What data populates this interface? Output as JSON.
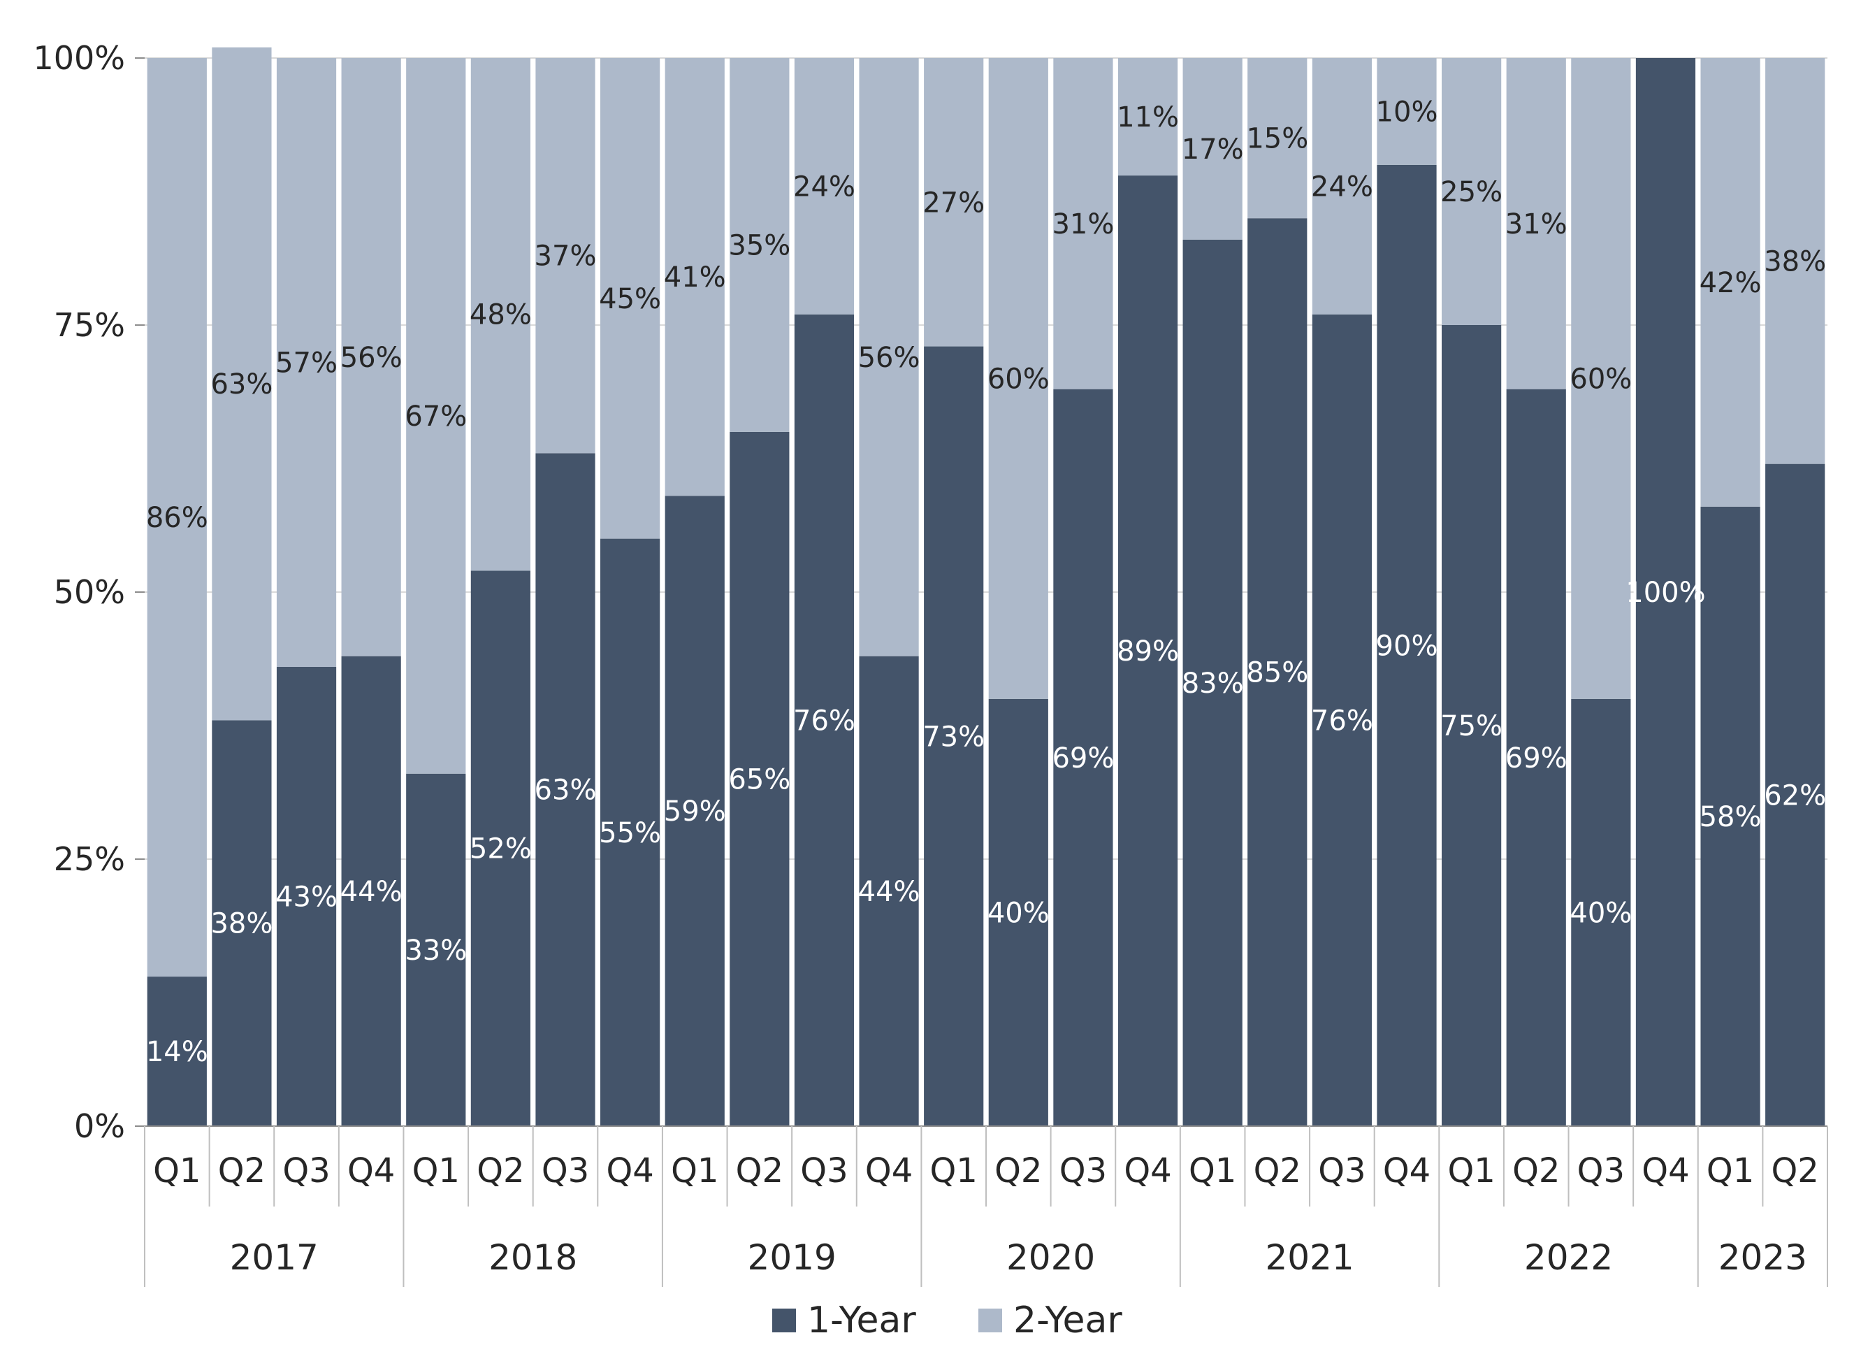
{
  "chart_data": {
    "type": "bar",
    "stacked": true,
    "percent_stacked": true,
    "title": "",
    "xlabel": "",
    "ylabel": "",
    "ylim": [
      0,
      100
    ],
    "yticks": [
      "0%",
      "25%",
      "50%",
      "75%",
      "100%"
    ],
    "grid": true,
    "legend_position": "bottom",
    "categories": [
      "Q1",
      "Q2",
      "Q3",
      "Q4",
      "Q1",
      "Q2",
      "Q3",
      "Q4",
      "Q1",
      "Q2",
      "Q3",
      "Q4",
      "Q1",
      "Q2",
      "Q3",
      "Q4",
      "Q1",
      "Q2",
      "Q3",
      "Q4",
      "Q1",
      "Q2",
      "Q3",
      "Q4",
      "Q1",
      "Q2"
    ],
    "groups": [
      {
        "label": "2017",
        "count": 4
      },
      {
        "label": "2018",
        "count": 4
      },
      {
        "label": "2019",
        "count": 4
      },
      {
        "label": "2020",
        "count": 4
      },
      {
        "label": "2021",
        "count": 4
      },
      {
        "label": "2022",
        "count": 4
      },
      {
        "label": "2023",
        "count": 2
      }
    ],
    "series": [
      {
        "name": "1-Year",
        "color": "#44546a",
        "label_color": "#ffffff",
        "values": [
          14,
          38,
          43,
          44,
          33,
          52,
          63,
          55,
          59,
          65,
          76,
          44,
          73,
          40,
          69,
          89,
          83,
          85,
          76,
          90,
          75,
          69,
          40,
          100,
          58,
          62
        ]
      },
      {
        "name": "2-Year",
        "color": "#adb9ca",
        "label_color": "#262626",
        "values": [
          86,
          63,
          57,
          56,
          67,
          48,
          37,
          45,
          41,
          35,
          24,
          56,
          27,
          60,
          31,
          11,
          17,
          15,
          24,
          10,
          25,
          31,
          60,
          0,
          42,
          38
        ]
      }
    ]
  }
}
